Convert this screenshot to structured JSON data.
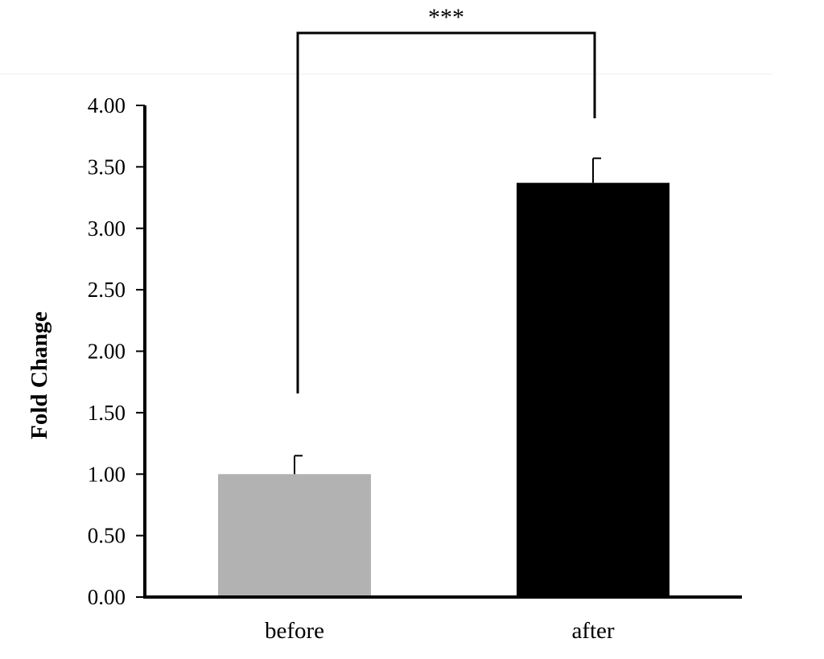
{
  "chart_data": {
    "type": "bar",
    "categories": [
      "before",
      "after"
    ],
    "values": [
      1.0,
      3.37
    ],
    "errors": [
      0.15,
      0.2
    ],
    "bar_colors": [
      "#b2b2b2",
      "#000000"
    ],
    "ylabel": "Fold Change",
    "xlabel": "",
    "ylim": [
      0,
      4
    ],
    "yticks": [
      "0.00",
      "0.50",
      "1.00",
      "1.50",
      "2.00",
      "2.50",
      "3.00",
      "3.50",
      "4.00"
    ],
    "significance": {
      "between": [
        "before",
        "after"
      ],
      "label": "***"
    },
    "grid": false,
    "legend": "none"
  }
}
